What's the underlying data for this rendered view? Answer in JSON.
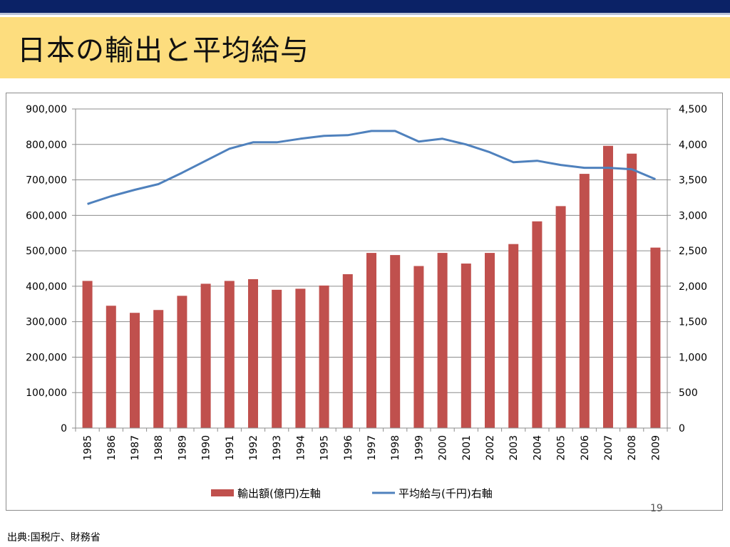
{
  "slide": {
    "title": "日本の輸出と平均給与",
    "source": "出典:国税庁、財務省",
    "page_number": "19"
  },
  "colors": {
    "top_stripe": "#0b2266",
    "title_band": "#fddd7e",
    "bar": "#c0504d",
    "line": "#4f81bd"
  },
  "chart_data": {
    "type": "bar",
    "categories": [
      "1985",
      "1986",
      "1987",
      "1988",
      "1989",
      "1990",
      "1991",
      "1992",
      "1993",
      "1994",
      "1995",
      "1996",
      "1997",
      "1998",
      "1999",
      "2000",
      "2001",
      "2002",
      "2003",
      "2004",
      "2005",
      "2006",
      "2007",
      "2008",
      "2009"
    ],
    "series": [
      {
        "name": "輸出額(億円)左軸",
        "type": "bar",
        "axis": "left",
        "values": [
          415000,
          345000,
          325000,
          333000,
          373000,
          407000,
          415000,
          420000,
          390000,
          393000,
          402000,
          434000,
          494000,
          488000,
          457000,
          494000,
          464000,
          494000,
          519000,
          583000,
          626000,
          717000,
          796000,
          774000,
          509000
        ]
      },
      {
        "name": "平均給与(千円)右軸",
        "type": "line",
        "axis": "right",
        "values": [
          3160,
          3270,
          3360,
          3440,
          3600,
          3770,
          3940,
          4030,
          4030,
          4080,
          4120,
          4130,
          4190,
          4190,
          4040,
          4080,
          4000,
          3890,
          3750,
          3770,
          3710,
          3670,
          3670,
          3650,
          3510
        ]
      }
    ],
    "y_left": {
      "min": 0,
      "max": 900000,
      "ticks": [
        "0",
        "100,000",
        "200,000",
        "300,000",
        "400,000",
        "500,000",
        "600,000",
        "700,000",
        "800,000",
        "900,000"
      ]
    },
    "y_right": {
      "min": 0,
      "max": 4500,
      "ticks": [
        "0",
        "500",
        "1,000",
        "1,500",
        "2,000",
        "2,500",
        "3,000",
        "3,500",
        "4,000",
        "4,500"
      ]
    },
    "grid": true,
    "legend_position": "bottom"
  }
}
